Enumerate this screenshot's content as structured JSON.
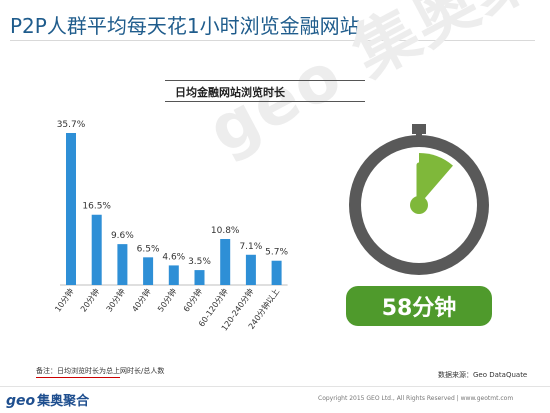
{
  "page": {
    "title": "P2P人群平均每天花1小时浏览金融网站",
    "watermark": "geo 集奥聚合",
    "note": "备注：日均浏览时长为总上网时长/总人数",
    "source": "数据来源：Geo DataQuate",
    "logo_geo": "geo",
    "logo_cn": "集奥聚合",
    "copyright": "Copyright 2015 GEO Ltd., All Rights Reserved   |   www.geotmt.com",
    "time_value": "58分钟"
  },
  "colors": {
    "bar": "#2e8fd6",
    "title": "#1f5c8c",
    "gauge_ring": "#595959",
    "gauge_fill": "#7fb83a",
    "time_box": "#4f9a2c"
  },
  "chart_data": {
    "type": "bar",
    "title": "日均金融网站浏览时长",
    "categories": [
      "10分钟",
      "20分钟",
      "30分钟",
      "40分钟",
      "50分钟",
      "60分钟",
      "60-120分钟",
      "120-240分钟",
      "240分钟以上"
    ],
    "values": [
      35.7,
      16.5,
      9.6,
      6.5,
      4.6,
      3.5,
      10.8,
      7.1,
      5.7
    ],
    "value_labels": [
      "35.7%",
      "16.5%",
      "9.6%",
      "6.5%",
      "4.6%",
      "3.5%",
      "10.8%",
      "7.1%",
      "5.7%"
    ],
    "unit": "%",
    "ylim": [
      0,
      35.7
    ],
    "grid": false,
    "legend": "none"
  },
  "gauge": {
    "type": "pie",
    "value_minutes": 58,
    "max_minutes": 60,
    "label": "58分钟"
  }
}
